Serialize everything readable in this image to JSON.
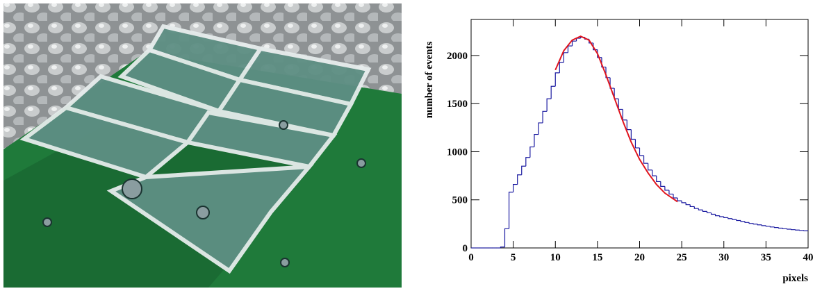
{
  "chart_data": {
    "type": "histogram",
    "xlabel": "pixels",
    "ylabel": "number of events",
    "color": "#1a1aa0",
    "bins": [
      0,
      0.5,
      1,
      1.5,
      2,
      2.5,
      3,
      3.5,
      4,
      4.5,
      5,
      5.5,
      6,
      6.5,
      7,
      7.5,
      8,
      8.5,
      9,
      9.5,
      10,
      10.5,
      11,
      11.5,
      12,
      12.5,
      13,
      13.5,
      14,
      14.5,
      15,
      15.5,
      16,
      16.5,
      17,
      17.5,
      18,
      18.5,
      19,
      19.5,
      20,
      20.5,
      21,
      21.5,
      22,
      22.5,
      23,
      23.5,
      24,
      24.5,
      25,
      25.5,
      26,
      26.5,
      27,
      27.5,
      28,
      28.5,
      29,
      29.5,
      30,
      30.5,
      31,
      31.5,
      32,
      32.5,
      33,
      33.5,
      34,
      34.5,
      35,
      35.5,
      36,
      36.5,
      37,
      37.5,
      38,
      38.5,
      39,
      39.5,
      40
    ],
    "counts": [
      0,
      0,
      0,
      0,
      0,
      0,
      0,
      10,
      200,
      580,
      660,
      760,
      850,
      940,
      1050,
      1180,
      1300,
      1420,
      1550,
      1680,
      1820,
      1930,
      2030,
      2100,
      2150,
      2180,
      2190,
      2170,
      2130,
      2060,
      1980,
      1880,
      1770,
      1660,
      1550,
      1440,
      1330,
      1230,
      1130,
      1040,
      960,
      880,
      810,
      750,
      690,
      640,
      600,
      560,
      520,
      490,
      470,
      450,
      430,
      410,
      395,
      380,
      365,
      350,
      335,
      325,
      315,
      305,
      295,
      285,
      275,
      265,
      255,
      248,
      240,
      232,
      225,
      218,
      212,
      206,
      200,
      195,
      190,
      186,
      182,
      178
    ],
    "fit": {
      "color": "#e0141e",
      "x": [
        10,
        11,
        12,
        13,
        14,
        15,
        16,
        17,
        18,
        19,
        20,
        21,
        22,
        23,
        24,
        24.5
      ],
      "values": [
        1850,
        2050,
        2160,
        2200,
        2160,
        2020,
        1800,
        1560,
        1320,
        1100,
        920,
        780,
        660,
        570,
        510,
        480
      ]
    },
    "xlim": [
      0,
      40
    ],
    "ylim": [
      0,
      2375
    ],
    "xticks": [
      0,
      5,
      10,
      15,
      20,
      25,
      30,
      35,
      40
    ],
    "yticks": [
      0,
      500,
      1000,
      1500,
      2000
    ]
  }
}
